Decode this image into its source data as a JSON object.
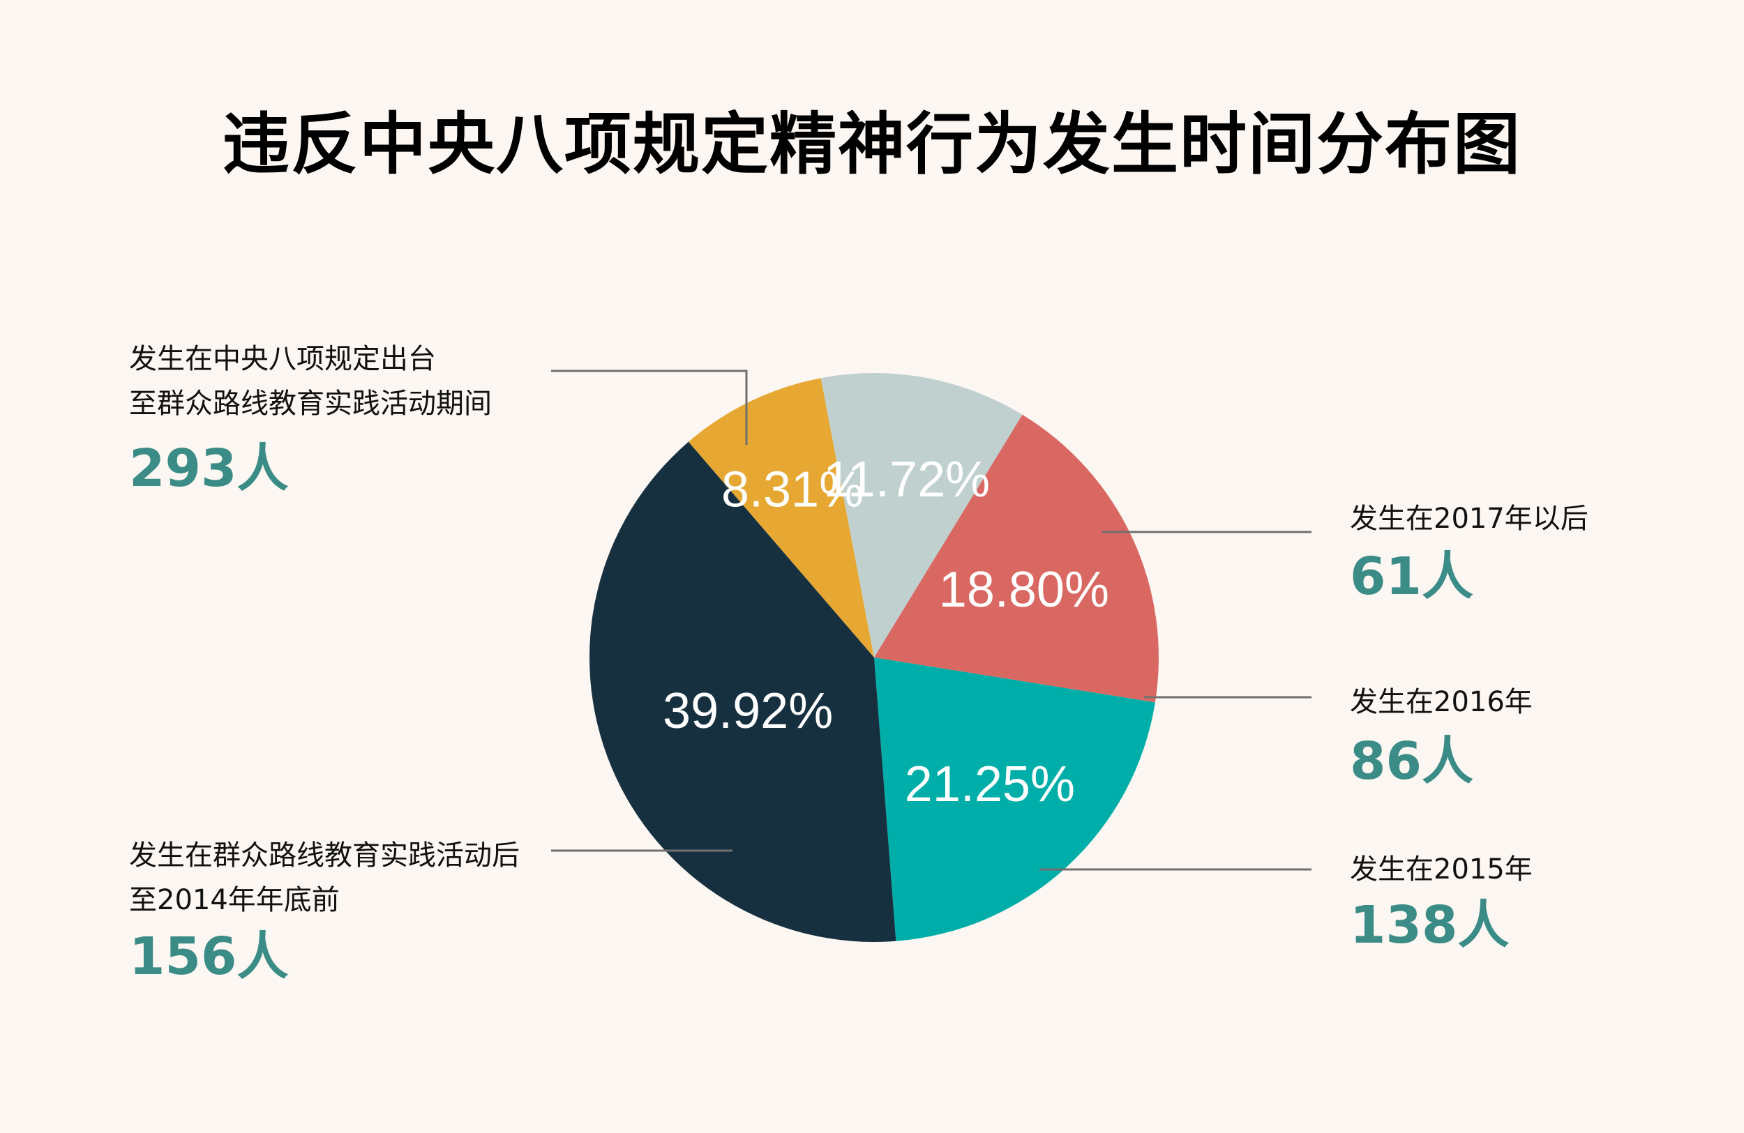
{
  "title": "违反中央八项规定精神行为发生时间分布图",
  "chart_data": {
    "type": "pie",
    "title": "违反中央八项规定精神行为发生时间分布图",
    "slices": [
      {
        "label_lines": [
          "发生在2017年以后"
        ],
        "count": "61人",
        "value": 61,
        "percent_label": "8.31%",
        "color": "#e6a832"
      },
      {
        "label_lines": [
          "发生在2016年"
        ],
        "count": "86人",
        "value": 86,
        "percent_label": "11.72%",
        "color": "#c0d0cf"
      },
      {
        "label_lines": [
          "发生在2015年"
        ],
        "count": "138人",
        "value": 138,
        "percent_label": "18.80%",
        "color": "#d96863"
      },
      {
        "label_lines": [
          "发生在群众路线教育实践活动后",
          "至2014年年底前"
        ],
        "count": "156人",
        "value": 156,
        "percent_label": "21.25%",
        "color": "#00aea9"
      },
      {
        "label_lines": [
          "发生在中央八项规定出台",
          "至群众路线教育实践活动期间"
        ],
        "count": "293人",
        "value": 293,
        "percent_label": "39.92%",
        "color": "#163040"
      }
    ]
  }
}
